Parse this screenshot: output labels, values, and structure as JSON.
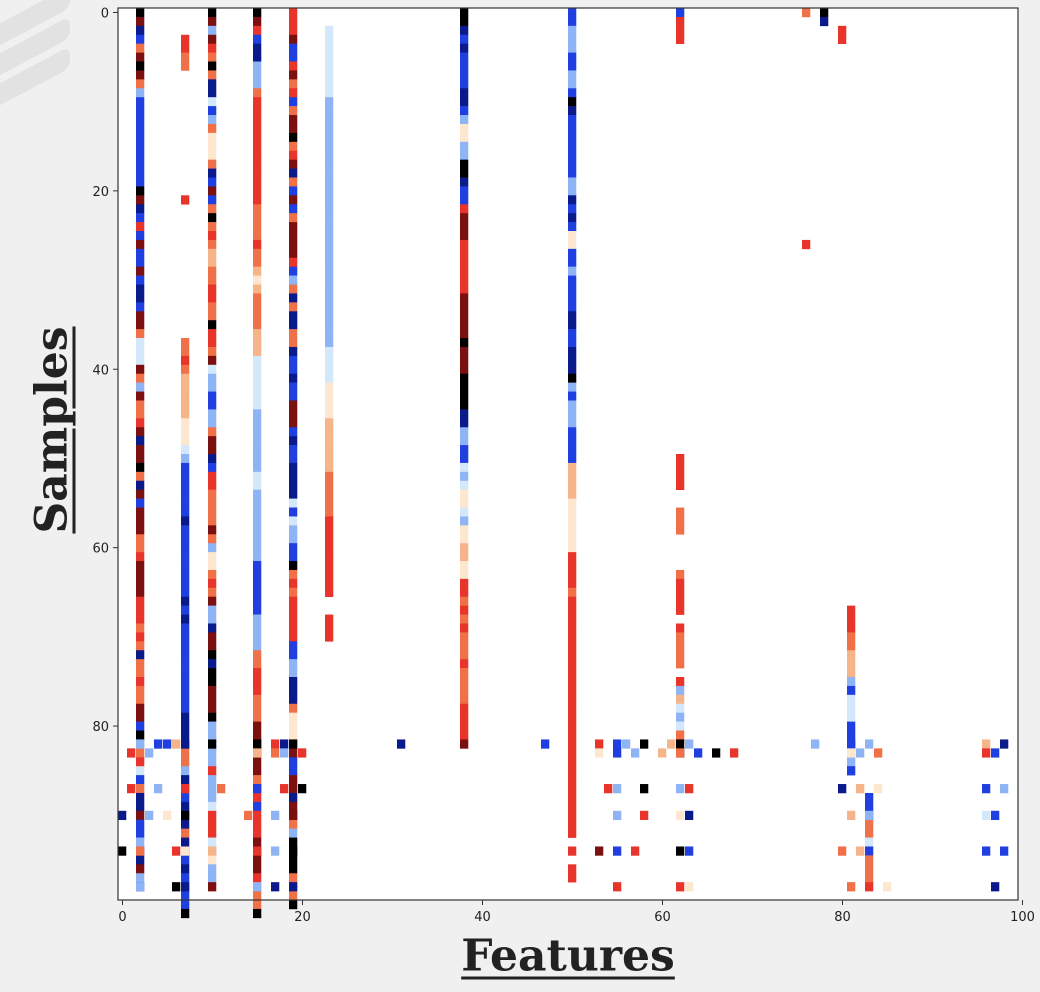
{
  "chart_data": {
    "type": "heatmap",
    "title": "",
    "xlabel": "Features",
    "ylabel": "Samples",
    "xlim": [
      -0.5,
      99.5
    ],
    "ylim": [
      99.5,
      -0.5
    ],
    "y_inverted": true,
    "xticks": [
      0,
      20,
      40,
      60,
      80,
      100
    ],
    "yticks": [
      0,
      20,
      40,
      60,
      80
    ],
    "n_features": 100,
    "n_samples": 100,
    "colormap": "coolwarm_extended",
    "palette": {
      "black": "#000000",
      "navy": "#0a1a8a",
      "blue": "#1f3fe0",
      "lightblue": "#8fb4f5",
      "paleblue": "#d4e8fb",
      "cream": "#fde7cf",
      "peach": "#f6b48b",
      "salmon": "#f07048",
      "red": "#e8342a",
      "darkred": "#7a1010"
    },
    "cell_code_legend": {
      "K": "black",
      "N": "navy",
      "B": "blue",
      "L": "lightblue",
      "P": "paleblue",
      "C": "cream",
      "O": "peach",
      "S": "salmon",
      "R": "red",
      "D": "darkred",
      ".": "empty"
    },
    "columns": [
      {
        "x": 2,
        "cells": "KDNBSDKDSLBBBBBBBBBBKDNBRBDBBDBNNBDDSPPPDSLDSSRDNDDKSNDBDDDSSRDDDDRRRSRSNSSRSSDDBKLSRPBSNNDBBLBNDLB"
      },
      {
        "x": 7,
        "cells": "...RRSS..............R...............SSRSOOOOOCCCPLBBBBBBNBBBBBBBBNBNBBBBBBBBBBNNNBSSLNBBNBNSNNBNBBBBK"
      },
      {
        "x": 10,
        "cells": "KDLDRSKSNNPBLSCCCSNBDBSKSRSOOSSRRSSKRRSDPLLBBLLSDDNBRRSSSSDSLCCSRSDLLNDDKNKKDDDKLLLLLRLLLPPRRPLCLL"
      },
      {
        "x": 15,
        "cells": "KDRBNNLLLSRRRRRRRRRRRRSSSSRSSOCOSSSSOOOPPPPPPLLLLLLLPPLLLLLLLLBBBBBBLLLLSSRRRSSSDDDDDDSNRBRRRDDDDRSSSK"
      },
      {
        "x": 19,
        "cells": "RRRDBBRDSRBSDDKSRDNSBDBSDDDDRBLSNSNNSSNBBNBBDDDBNBBNNNNPBPLLBBKSRSRRRRRBBLLNNNSCCCSDBBDDNDNSLKKKKSSSK"
      },
      {
        "x": 23,
        "cells": "..PPPPPPPPLLLLLLLLLLLLLLLLLLLLLLLLLLLLPPPPCCCCOOOOOOSSSSSRRRRRRRRR..RRR"
      },
      {
        "x": 38,
        "cells": "KKNBNBBBBNNBLCCLLKKNBBRDDDRRRRRRDDDDDKDDDKKKKNNLLBBPLPCCPLCCOOCCRRSRSRSSSRSSSSRRRR"
      },
      {
        "x": 50,
        "cells": "BBLLLBBLLBKNBBBBBBBLLNBNBCCBBLBBBBNNBBNNNKLBLLLBBBBOOOOCCCCCCRRRRSRRRRRRRRRRRRRRRRRRRRRRRRRRR.R.RR"
      },
      {
        "x": 62,
        "cells": "BRRR..............................................RRRR..SSS....SRRRR.RSSSS.RLOPLPSKK"
      },
      {
        "x": 76,
        "cells": "S.........................R"
      },
      {
        "x": 78,
        "cells": "KN"
      },
      {
        "x": 80,
        "cells": "..RR"
      },
      {
        "x": 81,
        "cells": "...................................................................RRRSSOOOLBPPPBBBLLB"
      },
      {
        "x": 83,
        "cells": "........................................................................................BBBSSPBSSS"
      }
    ],
    "bottom_rows": [
      {
        "y": 82,
        "cells": "x2:L,x4:B,x5:B,x6:O,x7:N,x10:K,x15:K,x17:R,x18:N,x19:K,x31:N,x38:D,x47:B,x53:R,x55:B,x56:L,x58:K,x61:O,x63:L,x77:L,x81:B,x83:L,x96:O,x98:N"
      },
      {
        "y": 83,
        "cells": "x1:R,x3:L,x15:O,x17:S,x18:L,x20:R,x53:C,x55:B,x57:L,x60:O,x62:S,x64:B,x66:K,x68:R,x81:C,x82:L,x84:S,x96:R,x97:B"
      },
      {
        "y": 87,
        "cells": "x1:R,x4:L,x7:R,x11:S,x15:B,x18:R,x20:K,x54:R,x55:L,x58:K,x62:L,x63:R,x80:N,x82:O,x84:C,x96:B,x98:L"
      },
      {
        "y": 90,
        "cells": "x0:N,x3:L,x5:C,x7:K,x10:R,x14:S,x17:L,x19:D,x55:L,x58:R,x62:C,x63:N,x81:O,x83:L,x96:P,x97:B"
      },
      {
        "y": 94,
        "cells": "x0:K,x2:S,x6:R,x7:C,x10:O,x15:R,x17:L,x19:K,x53:D,x55:B,x57:R,x62:K,x63:B,x80:S,x82:O,x96:B,x98:B"
      },
      {
        "y": 98,
        "cells": "x2:L,x6:K,x7:N,x10:D,x15:L,x17:N,x19:N,x55:R,x62:R,x63:C,x81:S,x83:R,x85:C,x97:N"
      }
    ]
  }
}
